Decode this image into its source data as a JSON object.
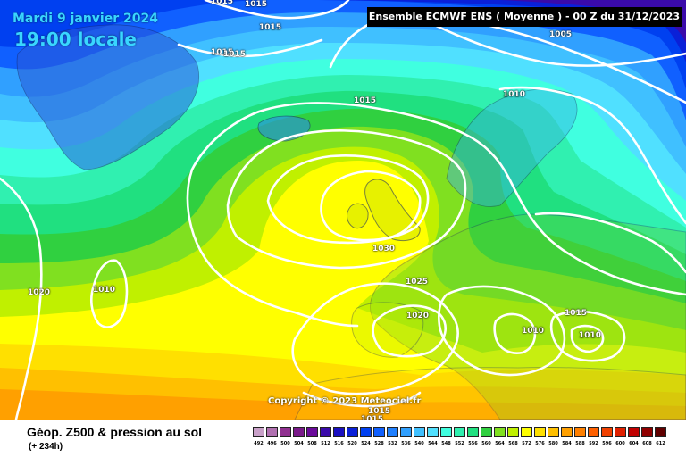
{
  "header": {
    "date": "Mardi 9 janvier 2024",
    "time": "19:00 locale",
    "model": "Ensemble ECMWF ENS  ( Moyenne )  -  00 Z du 31/12/2023"
  },
  "copyright": "Copyright © 2023 Meteociel.fr",
  "footer": {
    "title": "Géop. Z500 & pression au sol",
    "range": "(+ 234h)"
  },
  "isobar_labels": [
    {
      "text": "1015",
      "region": "north-top-1"
    },
    {
      "text": "1015",
      "region": "north-top-2"
    },
    {
      "text": "1015",
      "region": "north-top-3"
    },
    {
      "text": "1015",
      "region": "greenland-west"
    },
    {
      "text": "1015",
      "region": "greenland-east"
    },
    {
      "text": "1005",
      "region": "arctic-east"
    },
    {
      "text": "1010",
      "region": "norway"
    },
    {
      "text": "1015",
      "region": "iceland-south"
    },
    {
      "text": "1030",
      "region": "britain"
    },
    {
      "text": "1025",
      "region": "france"
    },
    {
      "text": "1020",
      "region": "iberia"
    },
    {
      "text": "1020",
      "region": "atlantic-west"
    },
    {
      "text": "1010",
      "region": "atlantic-low"
    },
    {
      "text": "1010",
      "region": "italy"
    },
    {
      "text": "1015",
      "region": "balkans"
    },
    {
      "text": "1010",
      "region": "greece"
    },
    {
      "text": "1015",
      "region": "africa-1"
    },
    {
      "text": "1015",
      "region": "africa-2"
    }
  ],
  "legend": {
    "values": [
      "492",
      "496",
      "500",
      "504",
      "508",
      "512",
      "516",
      "520",
      "524",
      "528",
      "532",
      "536",
      "540",
      "544",
      "548",
      "552",
      "556",
      "560",
      "564",
      "568",
      "572",
      "576",
      "580",
      "584",
      "588",
      "592",
      "596",
      "600",
      "604",
      "608",
      "612"
    ],
    "colors": [
      "#c8a0c8",
      "#b070b0",
      "#903090",
      "#7a1a8a",
      "#6a0a9a",
      "#3a0aaa",
      "#1a10c0",
      "#0a20d8",
      "#0040f0",
      "#1060ff",
      "#2080ff",
      "#30a0ff",
      "#40c0ff",
      "#50e0ff",
      "#40ffe0",
      "#30f0b0",
      "#20e080",
      "#30d040",
      "#80e020",
      "#c0f000",
      "#ffff00",
      "#ffe000",
      "#ffc000",
      "#ffa000",
      "#ff8000",
      "#ff6000",
      "#f04000",
      "#e02000",
      "#c00000",
      "#900000",
      "#600000"
    ]
  }
}
